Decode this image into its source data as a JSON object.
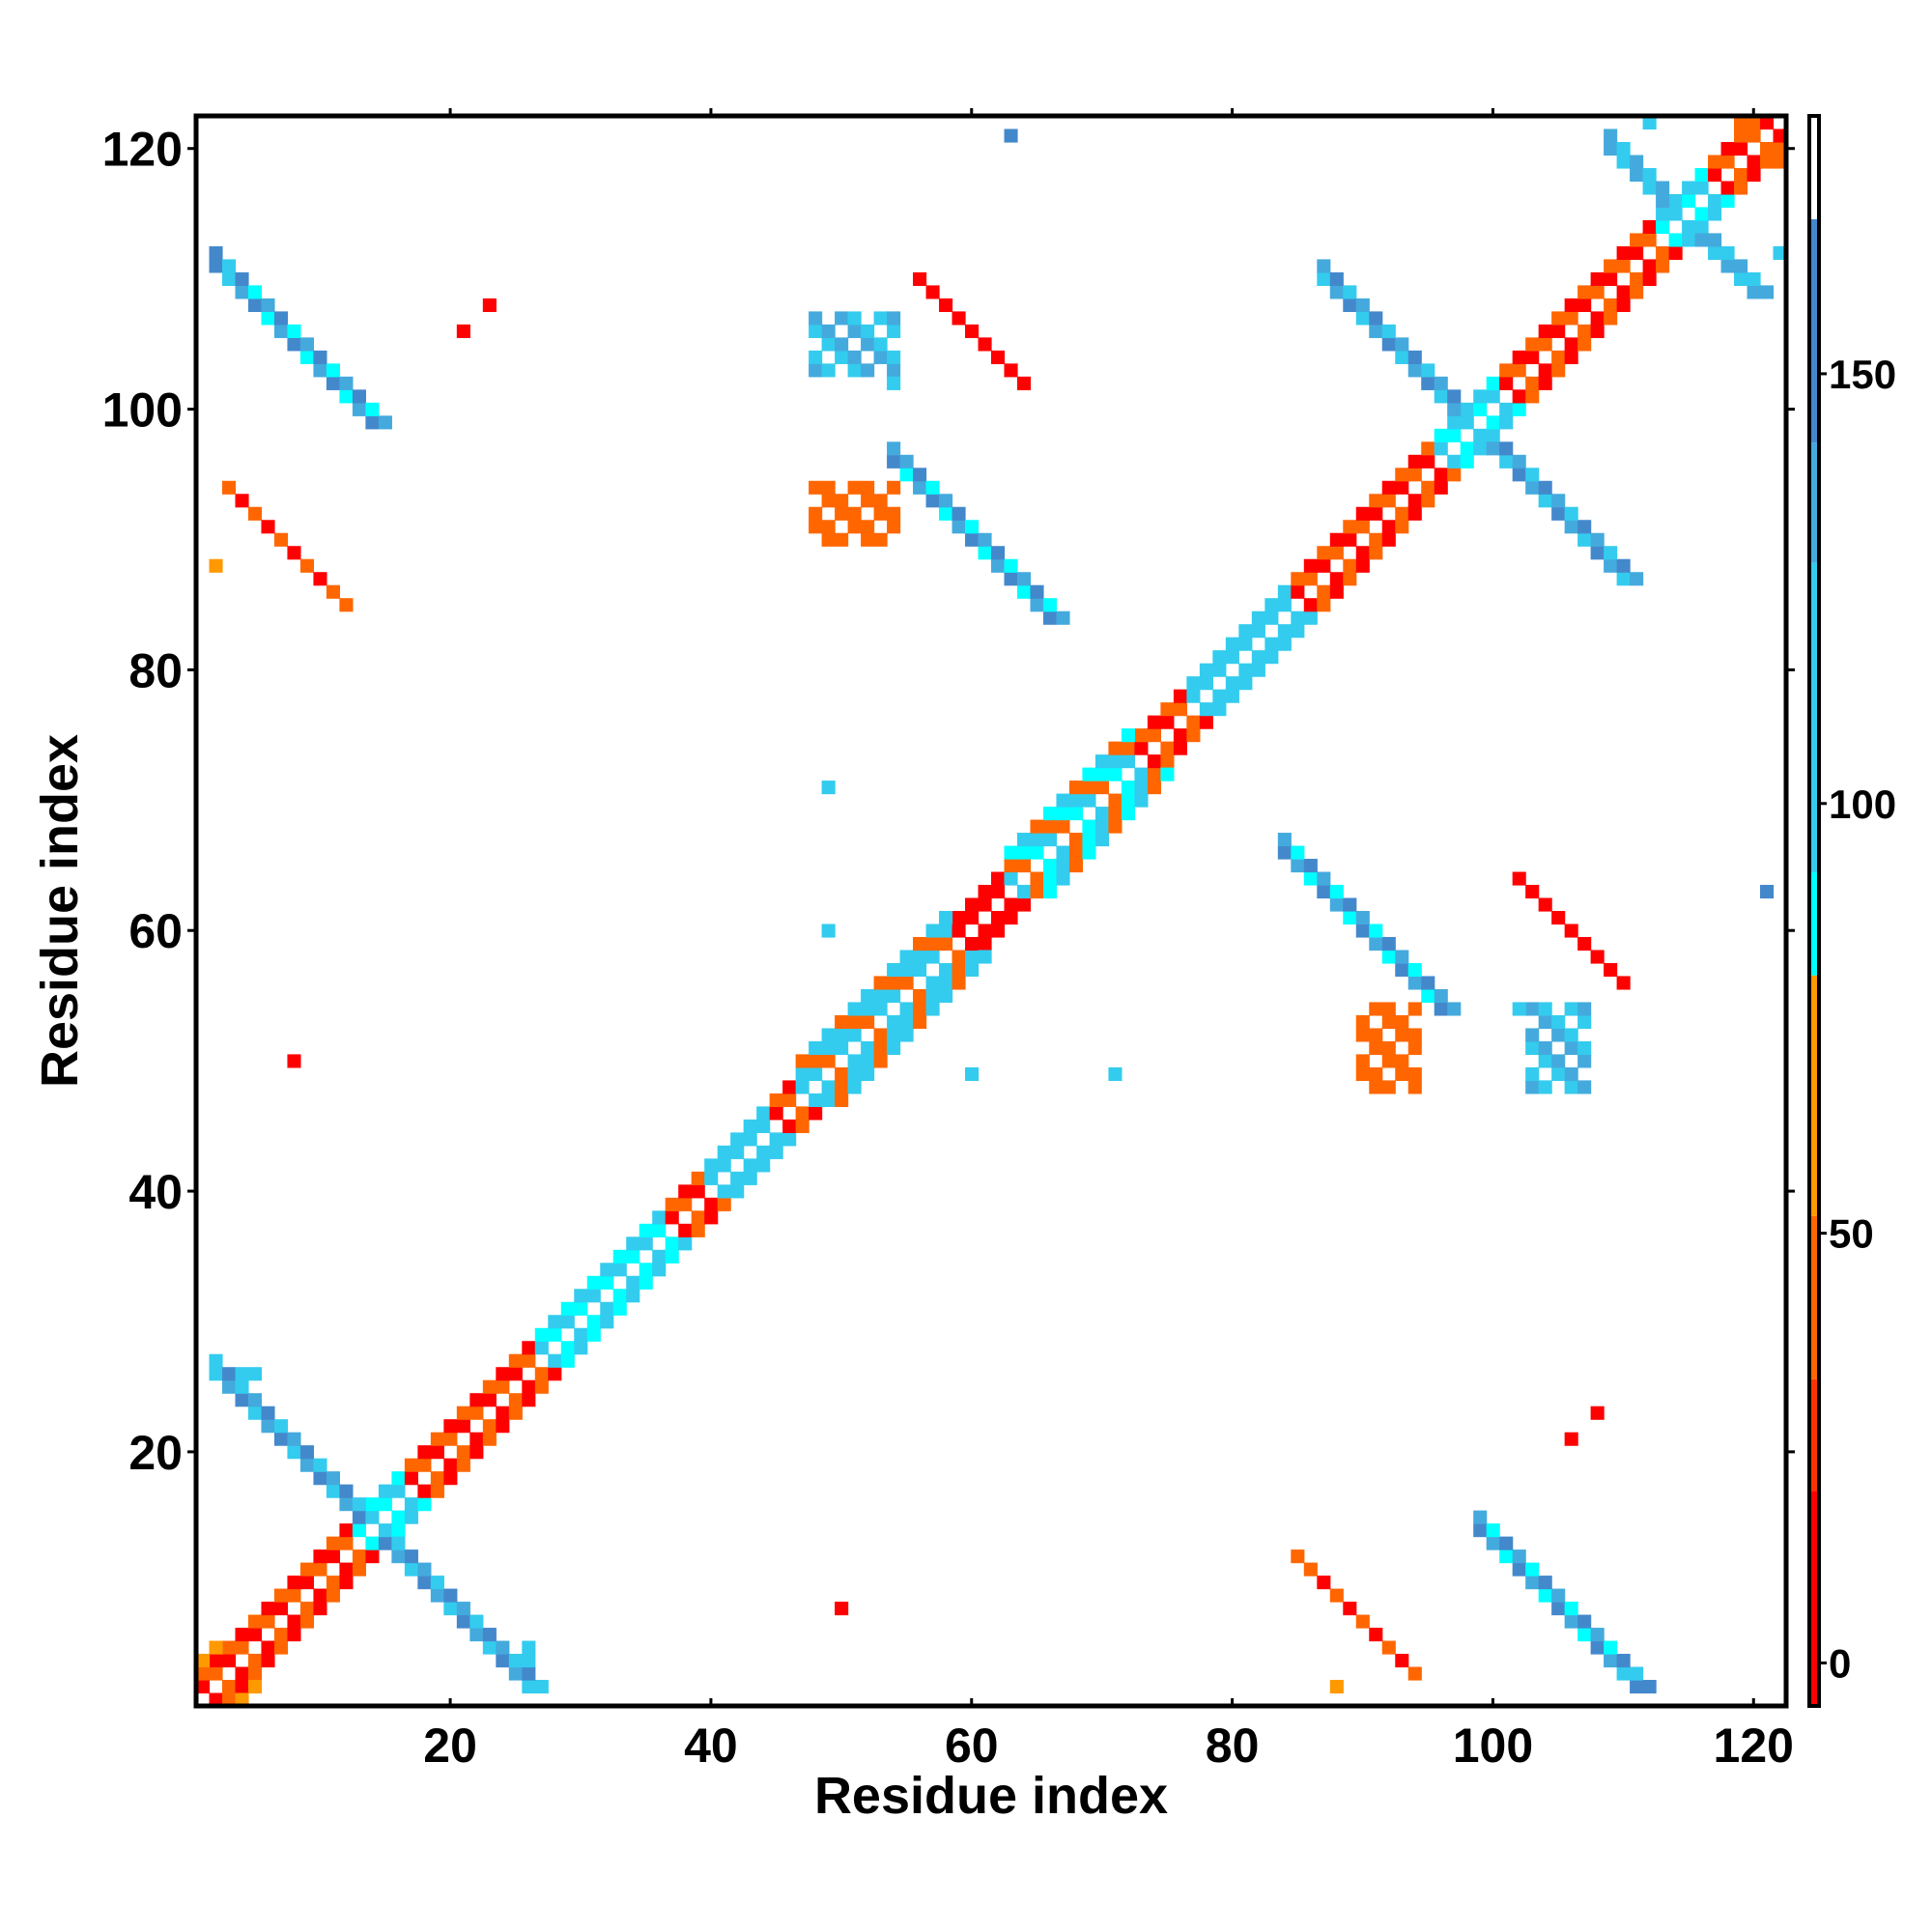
{
  "chart_data": {
    "type": "heatmap",
    "title": "",
    "xlabel": "Residue index",
    "ylabel": "Residue index",
    "xlim": [
      0.5,
      122.5
    ],
    "ylim": [
      0.5,
      122.5
    ],
    "x_ticks": [
      20,
      40,
      60,
      80,
      100,
      120
    ],
    "y_ticks": [
      20,
      40,
      60,
      80,
      100,
      120
    ],
    "colorbar": {
      "ticks": [
        0,
        50,
        100,
        150
      ],
      "range": [
        -5,
        180
      ],
      "bands": [
        {
          "from": -5,
          "to": 20,
          "color": "#ff0000"
        },
        {
          "from": 20,
          "to": 33,
          "color": "#ff3300"
        },
        {
          "from": 33,
          "to": 52,
          "color": "#ff6600"
        },
        {
          "from": 52,
          "to": 80,
          "color": "#ff9900"
        },
        {
          "from": 80,
          "to": 92,
          "color": "#00ffff"
        },
        {
          "from": 92,
          "to": 128,
          "color": "#33ccee"
        },
        {
          "from": 128,
          "to": 142,
          "color": "#44aadd"
        },
        {
          "from": 142,
          "to": 168,
          "color": "#4488cc"
        },
        {
          "from": 168,
          "to": 180,
          "color": "#ffffff"
        }
      ]
    },
    "features": [
      {
        "kind": "diag",
        "from": 1,
        "to": 122,
        "width": 2,
        "pattern": "checker",
        "values": [
          10,
          40
        ]
      },
      {
        "kind": "diag",
        "from": 13,
        "to": 16,
        "width": 2,
        "values": [
          85,
          110
        ]
      },
      {
        "kind": "diag",
        "from": 27,
        "to": 36,
        "width": 2,
        "values": [
          100,
          85
        ]
      },
      {
        "kind": "diag",
        "from": 40,
        "to": 44,
        "width": 2,
        "values": [
          95,
          110
        ]
      },
      {
        "kind": "diag",
        "from": 47,
        "to": 58,
        "width": 3,
        "values": [
          95,
          105,
          45
        ]
      },
      {
        "kind": "diag",
        "from": 63,
        "to": 72,
        "width": 3,
        "values": [
          90,
          110,
          40
        ]
      },
      {
        "kind": "diag",
        "from": 77,
        "to": 84,
        "width": 2,
        "values": [
          100,
          120
        ]
      },
      {
        "kind": "diag",
        "from": 96,
        "to": 100,
        "width": 2,
        "values": [
          85,
          110
        ]
      },
      {
        "kind": "diag",
        "from": 113,
        "to": 116,
        "width": 2,
        "values": [
          90,
          110
        ]
      },
      {
        "kind": "diag",
        "from": 59,
        "to": 62,
        "width": 2,
        "values": [
          5
        ]
      },
      {
        "kind": "anti",
        "center": 14,
        "half": 12,
        "width": 2,
        "values": [
          150,
          140,
          100
        ]
      },
      {
        "kind": "anti",
        "center": 98.5,
        "half": 12,
        "width": 2,
        "values": [
          150,
          140,
          100
        ]
      },
      {
        "kind": "anti",
        "center": 114.5,
        "half": 6,
        "width": 2,
        "values": [
          140,
          100
        ]
      },
      {
        "kind": "anti",
        "center": 8,
        "sum": 113,
        "half": 6,
        "width": 2,
        "values": [
          150,
          140,
          90
        ]
      },
      {
        "kind": "anti",
        "sum": 113,
        "center": 105,
        "half": 6,
        "width": 2,
        "values": [
          150,
          140,
          90
        ]
      },
      {
        "kind": "anti",
        "sum": 150,
        "center": 60,
        "half": 6,
        "width": 2,
        "values": [
          150,
          140,
          90
        ]
      },
      {
        "kind": "anti",
        "sum": 150,
        "center": 90,
        "half": 6,
        "width": 2,
        "values": [
          150,
          140,
          90
        ]
      },
      {
        "kind": "anti",
        "sum": 97,
        "center": 8,
        "half": 4,
        "width": 1,
        "values": [
          40,
          10
        ]
      },
      {
        "kind": "anti",
        "sum": 97,
        "center": 90,
        "half": 4,
        "width": 1,
        "values": [
          40,
          10
        ]
      },
      {
        "kind": "anti",
        "sum": 166,
        "center": 61,
        "half": 3,
        "width": 1,
        "values": [
          10
        ]
      },
      {
        "kind": "anti",
        "sum": 166,
        "center": 107,
        "half": 3,
        "width": 1,
        "values": [
          10
        ]
      },
      {
        "kind": "block",
        "x": [
          48,
          54
        ],
        "y": [
          90,
          94
        ],
        "values": [
          40,
          50
        ]
      },
      {
        "kind": "block",
        "x": [
          90,
          94
        ],
        "y": [
          48,
          54
        ],
        "values": [
          40,
          50
        ]
      },
      {
        "kind": "block",
        "x": [
          48,
          54
        ],
        "y": [
          103,
          107
        ],
        "values": [
          110,
          140
        ]
      },
      {
        "kind": "block",
        "x": [
          103,
          107
        ],
        "y": [
          48,
          54
        ],
        "values": [
          110,
          140
        ]
      },
      {
        "kind": "pts",
        "values": [
          [
            21,
            106,
            10
          ],
          [
            23,
            108,
            10
          ],
          [
            106,
            21,
            10
          ],
          [
            108,
            23,
            10
          ],
          [
            8,
            50,
            10
          ],
          [
            50,
            8,
            10
          ],
          [
            63,
            121,
            150
          ],
          [
            121,
            63,
            150
          ],
          [
            49,
            71,
            110
          ],
          [
            71,
            49,
            110
          ],
          [
            60,
            49,
            100
          ],
          [
            49,
            60,
            100
          ],
          [
            54,
            102,
            100
          ],
          [
            102,
            54,
            100
          ],
          [
            2,
            88,
            60
          ],
          [
            88,
            2,
            60
          ],
          [
            1,
            4,
            55
          ],
          [
            4,
            1,
            55
          ],
          [
            2,
            5,
            55
          ],
          [
            5,
            2,
            55
          ],
          [
            120,
            122,
            40
          ],
          [
            122,
            120,
            40
          ],
          [
            119,
            122,
            40
          ],
          [
            122,
            119,
            40
          ],
          [
            26,
            4,
            100
          ],
          [
            4,
            26,
            100
          ],
          [
            26,
            5,
            100
          ],
          [
            5,
            26,
            100
          ],
          [
            111,
            3,
            100
          ],
          [
            3,
            111,
            100
          ],
          [
            110,
            3,
            100
          ],
          [
            3,
            110,
            100
          ],
          [
            27,
            2,
            100
          ],
          [
            2,
            27,
            100
          ],
          [
            112,
            122,
            100
          ],
          [
            122,
            112,
            100
          ]
        ]
      }
    ]
  }
}
